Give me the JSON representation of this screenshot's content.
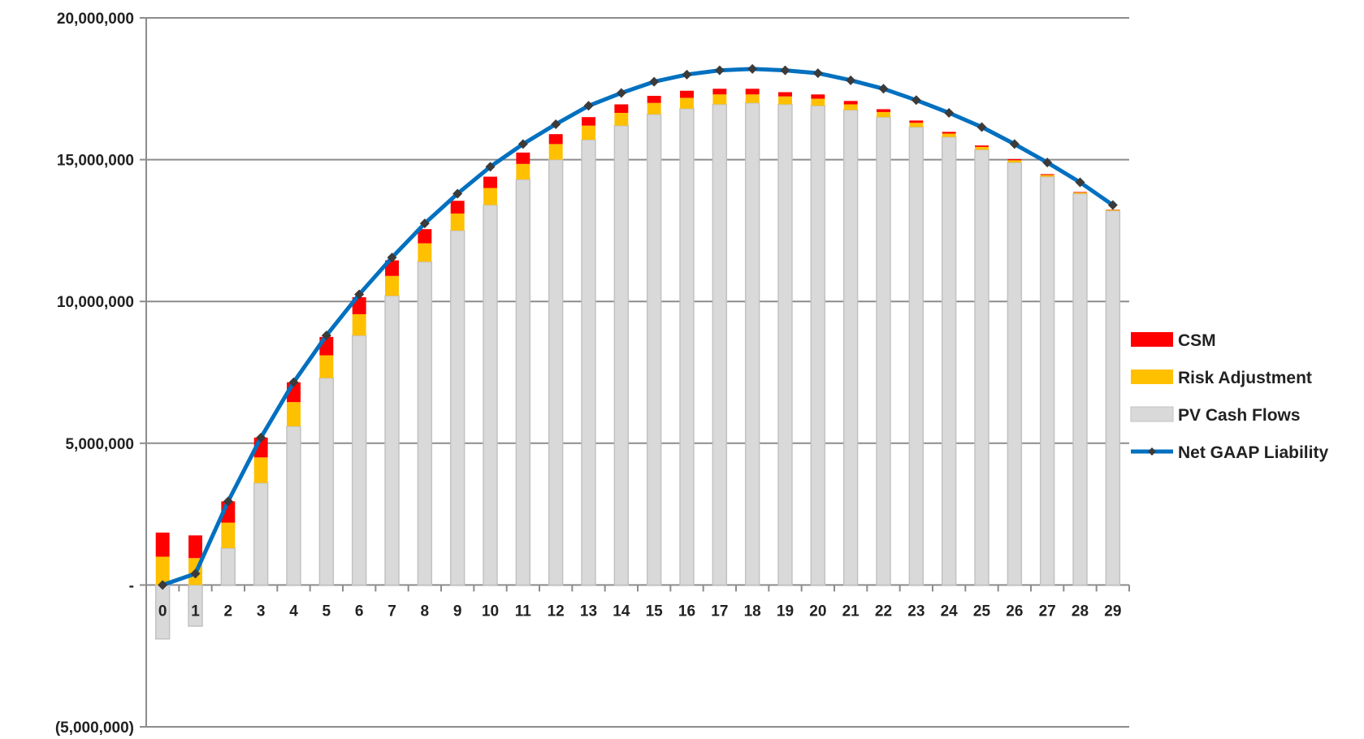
{
  "chart_data": {
    "type": "bar",
    "stacked": true,
    "categories": [
      "0",
      "1",
      "2",
      "3",
      "4",
      "5",
      "6",
      "7",
      "8",
      "9",
      "10",
      "11",
      "12",
      "13",
      "14",
      "15",
      "16",
      "17",
      "18",
      "19",
      "20",
      "21",
      "22",
      "23",
      "24",
      "25",
      "26",
      "27",
      "28",
      "29"
    ],
    "ylim": [
      -5000000,
      20000000
    ],
    "y_ticks": [
      20000000,
      15000000,
      10000000,
      5000000,
      0,
      -5000000
    ],
    "y_tick_labels": [
      "20,000,000",
      "15,000,000",
      "10,000,000",
      "5,000,000",
      "-",
      "(5,000,000)"
    ],
    "grid": true,
    "legend_position": "right",
    "series": [
      {
        "name": "PV Cash Flows",
        "kind": "bar",
        "color": "#d9d9d9",
        "values": [
          -1900000,
          -1450000,
          1300000,
          3600000,
          5600000,
          7300000,
          8800000,
          10200000,
          11400000,
          12500000,
          13400000,
          14300000,
          15000000,
          15700000,
          16200000,
          16600000,
          16800000,
          16950000,
          17000000,
          16950000,
          16900000,
          16750000,
          16500000,
          16150000,
          15800000,
          15350000,
          14900000,
          14400000,
          13800000,
          13200000
        ]
      },
      {
        "name": "Risk Adjustment",
        "kind": "bar",
        "color": "#ffc000",
        "values": [
          1000000,
          950000,
          900000,
          900000,
          850000,
          800000,
          750000,
          700000,
          650000,
          600000,
          600000,
          550000,
          550000,
          500000,
          450000,
          400000,
          380000,
          350000,
          300000,
          280000,
          250000,
          200000,
          180000,
          150000,
          120000,
          100000,
          80000,
          60000,
          40000,
          30000
        ]
      },
      {
        "name": "CSM",
        "kind": "bar",
        "color": "#ff0000",
        "values": [
          850000,
          800000,
          750000,
          700000,
          700000,
          650000,
          600000,
          550000,
          500000,
          450000,
          400000,
          400000,
          350000,
          300000,
          300000,
          250000,
          250000,
          200000,
          200000,
          150000,
          150000,
          120000,
          100000,
          80000,
          60000,
          50000,
          40000,
          30000,
          20000,
          10000
        ]
      },
      {
        "name": "Net GAAP Liability",
        "kind": "line",
        "color": "#0070c0",
        "marker_color": "#3b3b3b",
        "values": [
          0,
          400000,
          2950000,
          5200000,
          7150000,
          8800000,
          10250000,
          11550000,
          12750000,
          13800000,
          14750000,
          15550000,
          16250000,
          16900000,
          17350000,
          17750000,
          18000000,
          18150000,
          18200000,
          18150000,
          18050000,
          17800000,
          17500000,
          17100000,
          16650000,
          16150000,
          15550000,
          14900000,
          14200000,
          13400000
        ]
      }
    ]
  },
  "legend": {
    "items": [
      {
        "label": "CSM",
        "color": "#ff0000",
        "kind": "bar"
      },
      {
        "label": "Risk Adjustment",
        "color": "#ffc000",
        "kind": "bar"
      },
      {
        "label": "PV Cash Flows",
        "color": "#d9d9d9",
        "kind": "bar"
      },
      {
        "label": "Net GAAP Liability",
        "color": "#0070c0",
        "kind": "line"
      }
    ]
  }
}
